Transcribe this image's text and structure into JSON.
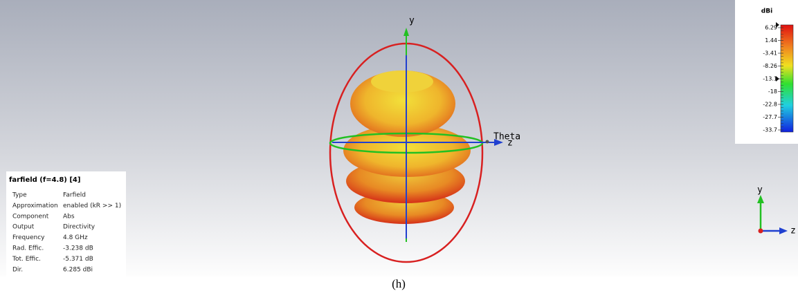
{
  "info_panel": {
    "title": "farfield (f=4.8) [4]",
    "rows": [
      [
        "Type",
        "Farfield"
      ],
      [
        "Approximation",
        "enabled (kR >> 1)"
      ],
      [
        "Component",
        "Abs"
      ],
      [
        "Output",
        "Directivity"
      ],
      [
        "Frequency",
        "4.8 GHz"
      ],
      [
        "Rad. Effic.",
        "-3.238 dB"
      ],
      [
        "Tot. Effic.",
        "-5.371 dB"
      ],
      [
        "Dir.",
        "6.285 dBi"
      ]
    ]
  },
  "colorbar": {
    "unit": "dBi",
    "ticks": [
      "6.29",
      "1.44",
      "-3.41",
      "-8.26",
      "-13.1",
      "-18",
      "-22.8",
      "-27.7",
      "-33.7"
    ]
  },
  "axes": {
    "y": "y",
    "theta": "Theta",
    "z": "z"
  },
  "mini_axes": {
    "y": "y",
    "z": "z"
  },
  "caption": "(h)"
}
